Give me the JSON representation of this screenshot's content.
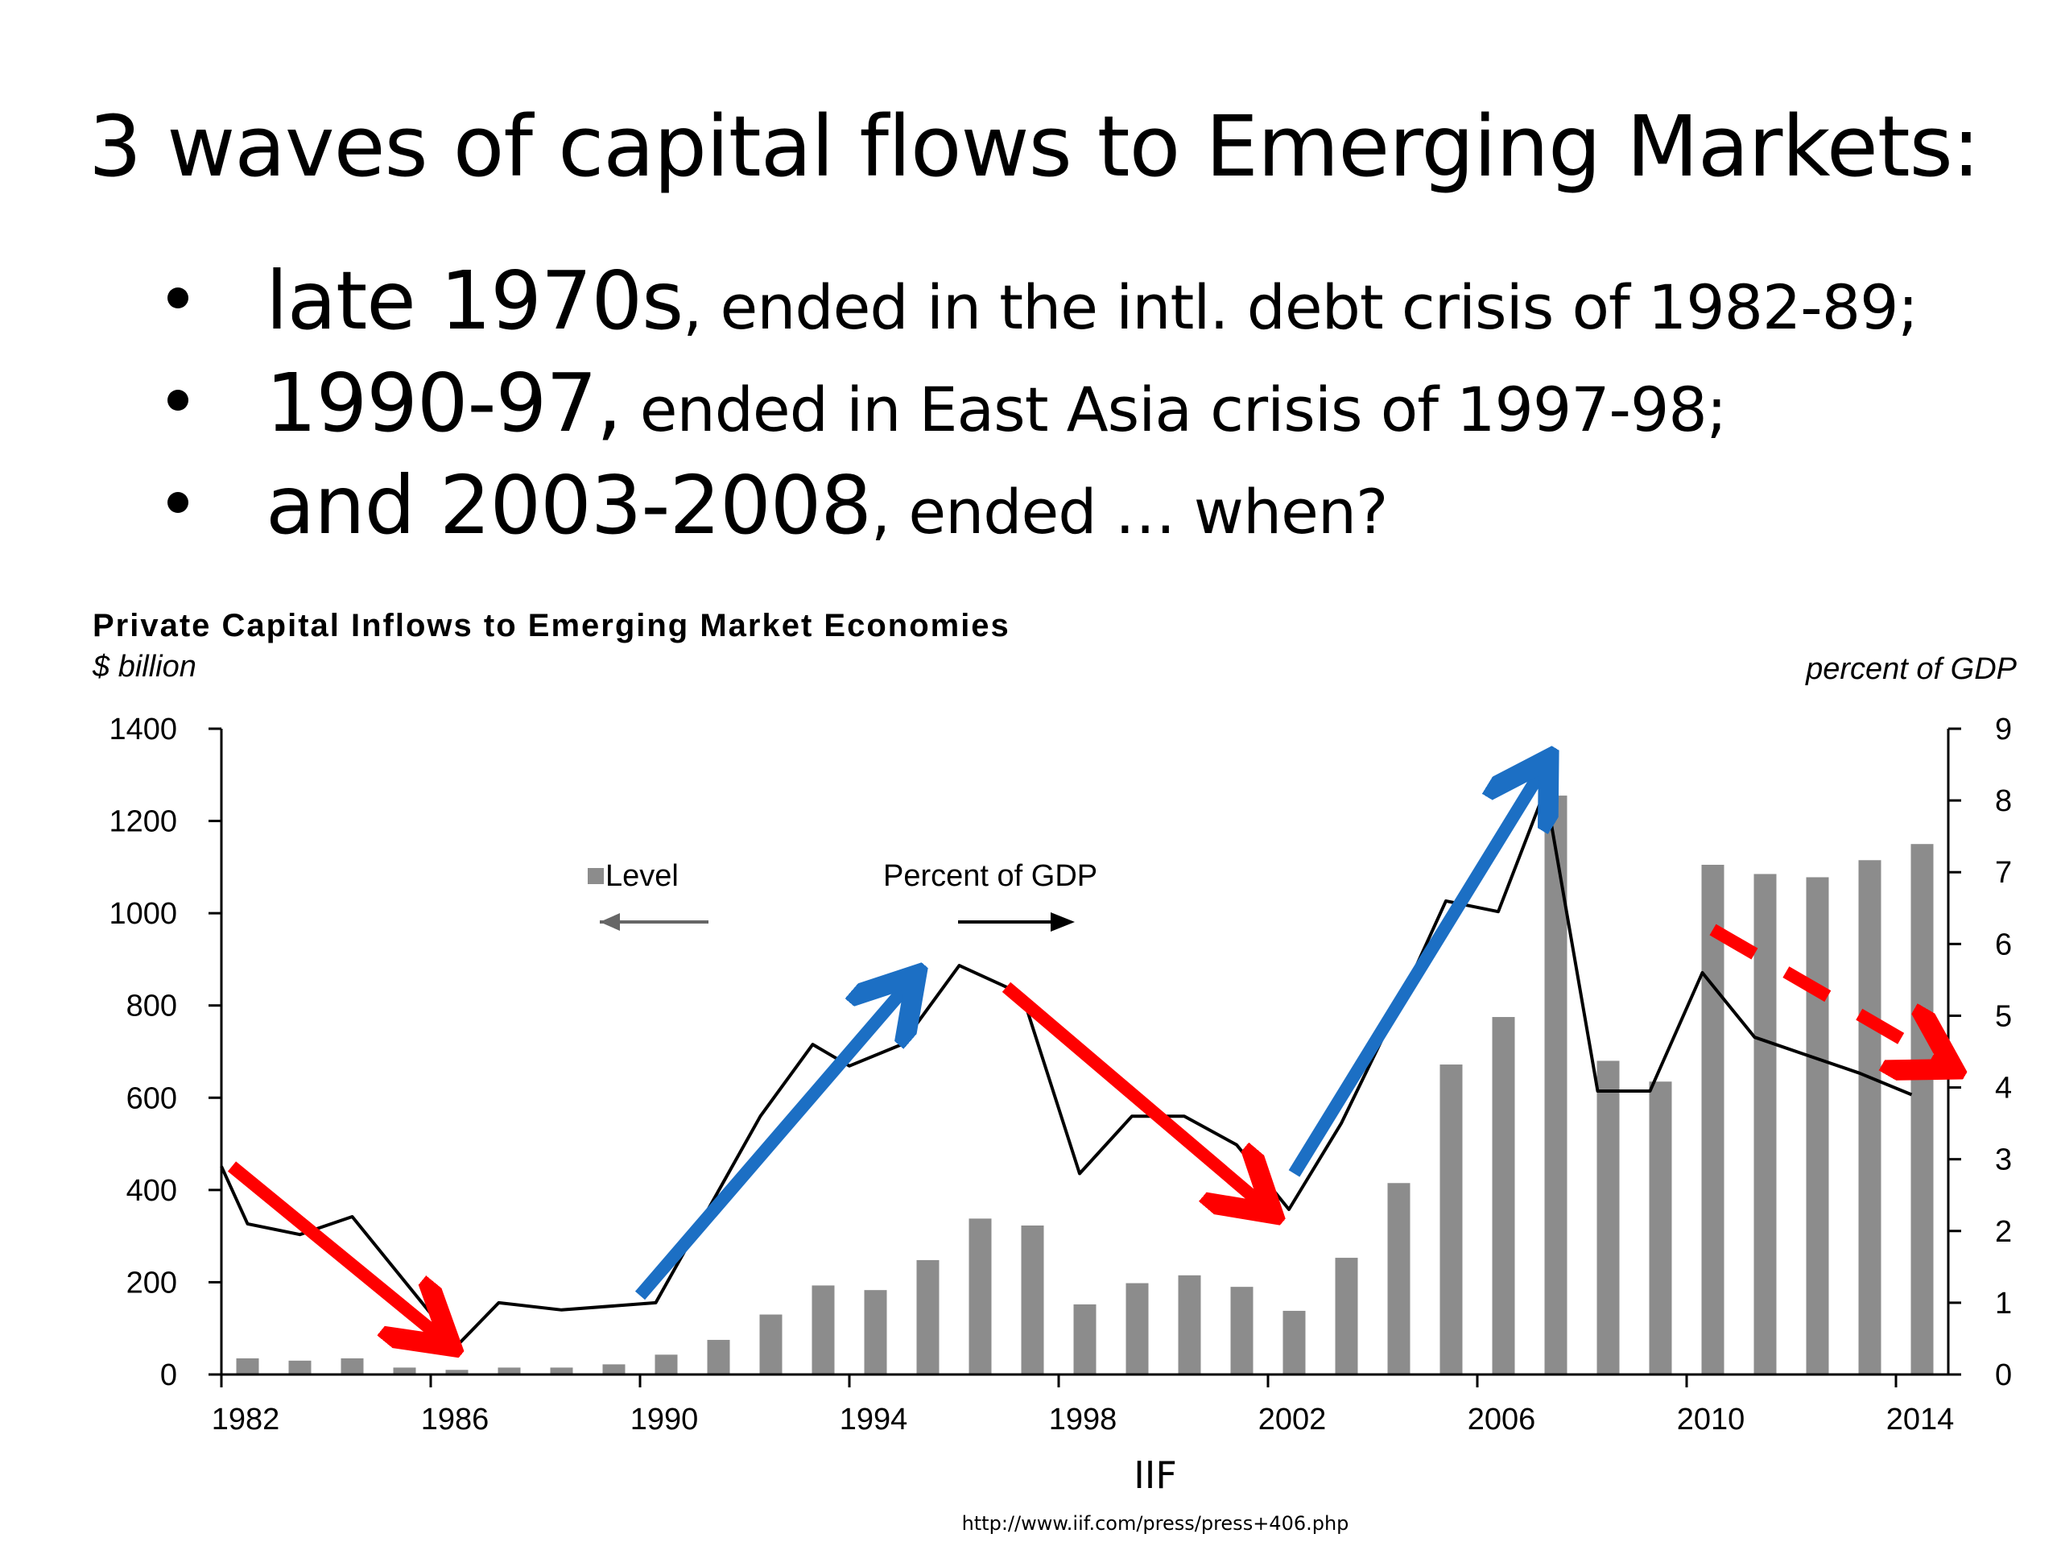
{
  "slide": {
    "title": "3 waves of capital flows to Emerging Markets:",
    "bullets": [
      {
        "main": "late 1970s",
        "rest": ", ended in the intl. debt crisis of 1982-89;"
      },
      {
        "main": "1990-97,",
        "rest": " ended in East Asia crisis of 1997-98;"
      },
      {
        "main": "and 2003-2008",
        "rest": ", ended … when?"
      }
    ],
    "source": "IIF",
    "source_url": "http://www.iif.com/press/press+406.php"
  },
  "chart_data": {
    "type": "bar",
    "title": "Private Capital Inflows to Emerging Market Economies",
    "ylabel": "$ billion",
    "y2label": "percent of GDP",
    "ylim": [
      0,
      1400
    ],
    "y2lim": [
      0,
      9
    ],
    "yticks": [
      0,
      200,
      400,
      600,
      800,
      1000,
      1200,
      1400
    ],
    "y2ticks": [
      0,
      1,
      2,
      3,
      4,
      5,
      6,
      7,
      8,
      9
    ],
    "xlim": [
      1982,
      2015
    ],
    "xticks": [
      1982,
      1986,
      1990,
      1994,
      1998,
      2002,
      2006,
      2010,
      2014
    ],
    "legend": {
      "level_label": "Level",
      "pct_label": "Percent of GDP",
      "placement": "upper-left"
    },
    "series": [
      {
        "name": "Level",
        "kind": "bar",
        "axis": "left",
        "color": "#8c8c8c",
        "x": [
          1982,
          1983,
          1984,
          1985,
          1986,
          1987,
          1988,
          1989,
          1990,
          1991,
          1992,
          1993,
          1994,
          1995,
          1996,
          1997,
          1998,
          1999,
          2000,
          2001,
          2002,
          2003,
          2004,
          2005,
          2006,
          2007,
          2008,
          2009,
          2010,
          2011,
          2012,
          2013,
          2014
        ],
        "values": [
          35,
          30,
          35,
          15,
          10,
          15,
          15,
          22,
          43,
          75,
          130,
          193,
          183,
          248,
          338,
          323,
          152,
          198,
          215,
          190,
          138,
          253,
          415,
          672,
          775,
          1255,
          680,
          635,
          1105,
          1085,
          1078,
          1115,
          1150
        ]
      },
      {
        "name": "Percent of GDP",
        "kind": "line",
        "axis": "right",
        "color": "#000000",
        "x": [
          1982,
          1982.5,
          1983.5,
          1984.5,
          1986.5,
          1987.3,
          1988.5,
          1990.3,
          1992.3,
          1993.3,
          1994.0,
          1995.0,
          1996.1,
          1997.3,
          1998.4,
          1999.4,
          2000.4,
          2001.4,
          2002.4,
          2003.4,
          2004.4,
          2005.4,
          2006.4,
          2007.3,
          2008.3,
          2009.3,
          2010.3,
          2011.3,
          2012.3,
          2013.3,
          2014.3
        ],
        "values": [
          2.9,
          2.1,
          1.95,
          2.2,
          0.4,
          1.0,
          0.9,
          1.0,
          3.6,
          4.6,
          4.3,
          4.6,
          5.7,
          5.3,
          2.8,
          3.6,
          3.6,
          3.2,
          2.3,
          3.5,
          5.0,
          6.6,
          6.45,
          8.15,
          3.95,
          3.95,
          5.6,
          4.7,
          4.45,
          4.2,
          3.9
        ]
      }
    ],
    "annotations": [
      {
        "kind": "arrow",
        "color": "#ff0000",
        "style": "solid",
        "from": [
          1982.2,
          2.9
        ],
        "to": [
          1986.3,
          0.45
        ]
      },
      {
        "kind": "arrow",
        "color": "#1c6fc4",
        "style": "solid",
        "from": [
          1990.0,
          1.1
        ],
        "to": [
          1995.2,
          5.5
        ]
      },
      {
        "kind": "arrow",
        "color": "#ff0000",
        "style": "solid",
        "from": [
          1997.0,
          5.4
        ],
        "to": [
          2002.0,
          2.3
        ]
      },
      {
        "kind": "arrow",
        "color": "#1c6fc4",
        "style": "solid",
        "from": [
          2002.5,
          2.8
        ],
        "to": [
          2007.3,
          8.5
        ]
      },
      {
        "kind": "arrow",
        "color": "#ff0000",
        "style": "dashed",
        "from": [
          2010.5,
          6.2
        ],
        "to": [
          2015.0,
          4.3
        ]
      }
    ]
  }
}
